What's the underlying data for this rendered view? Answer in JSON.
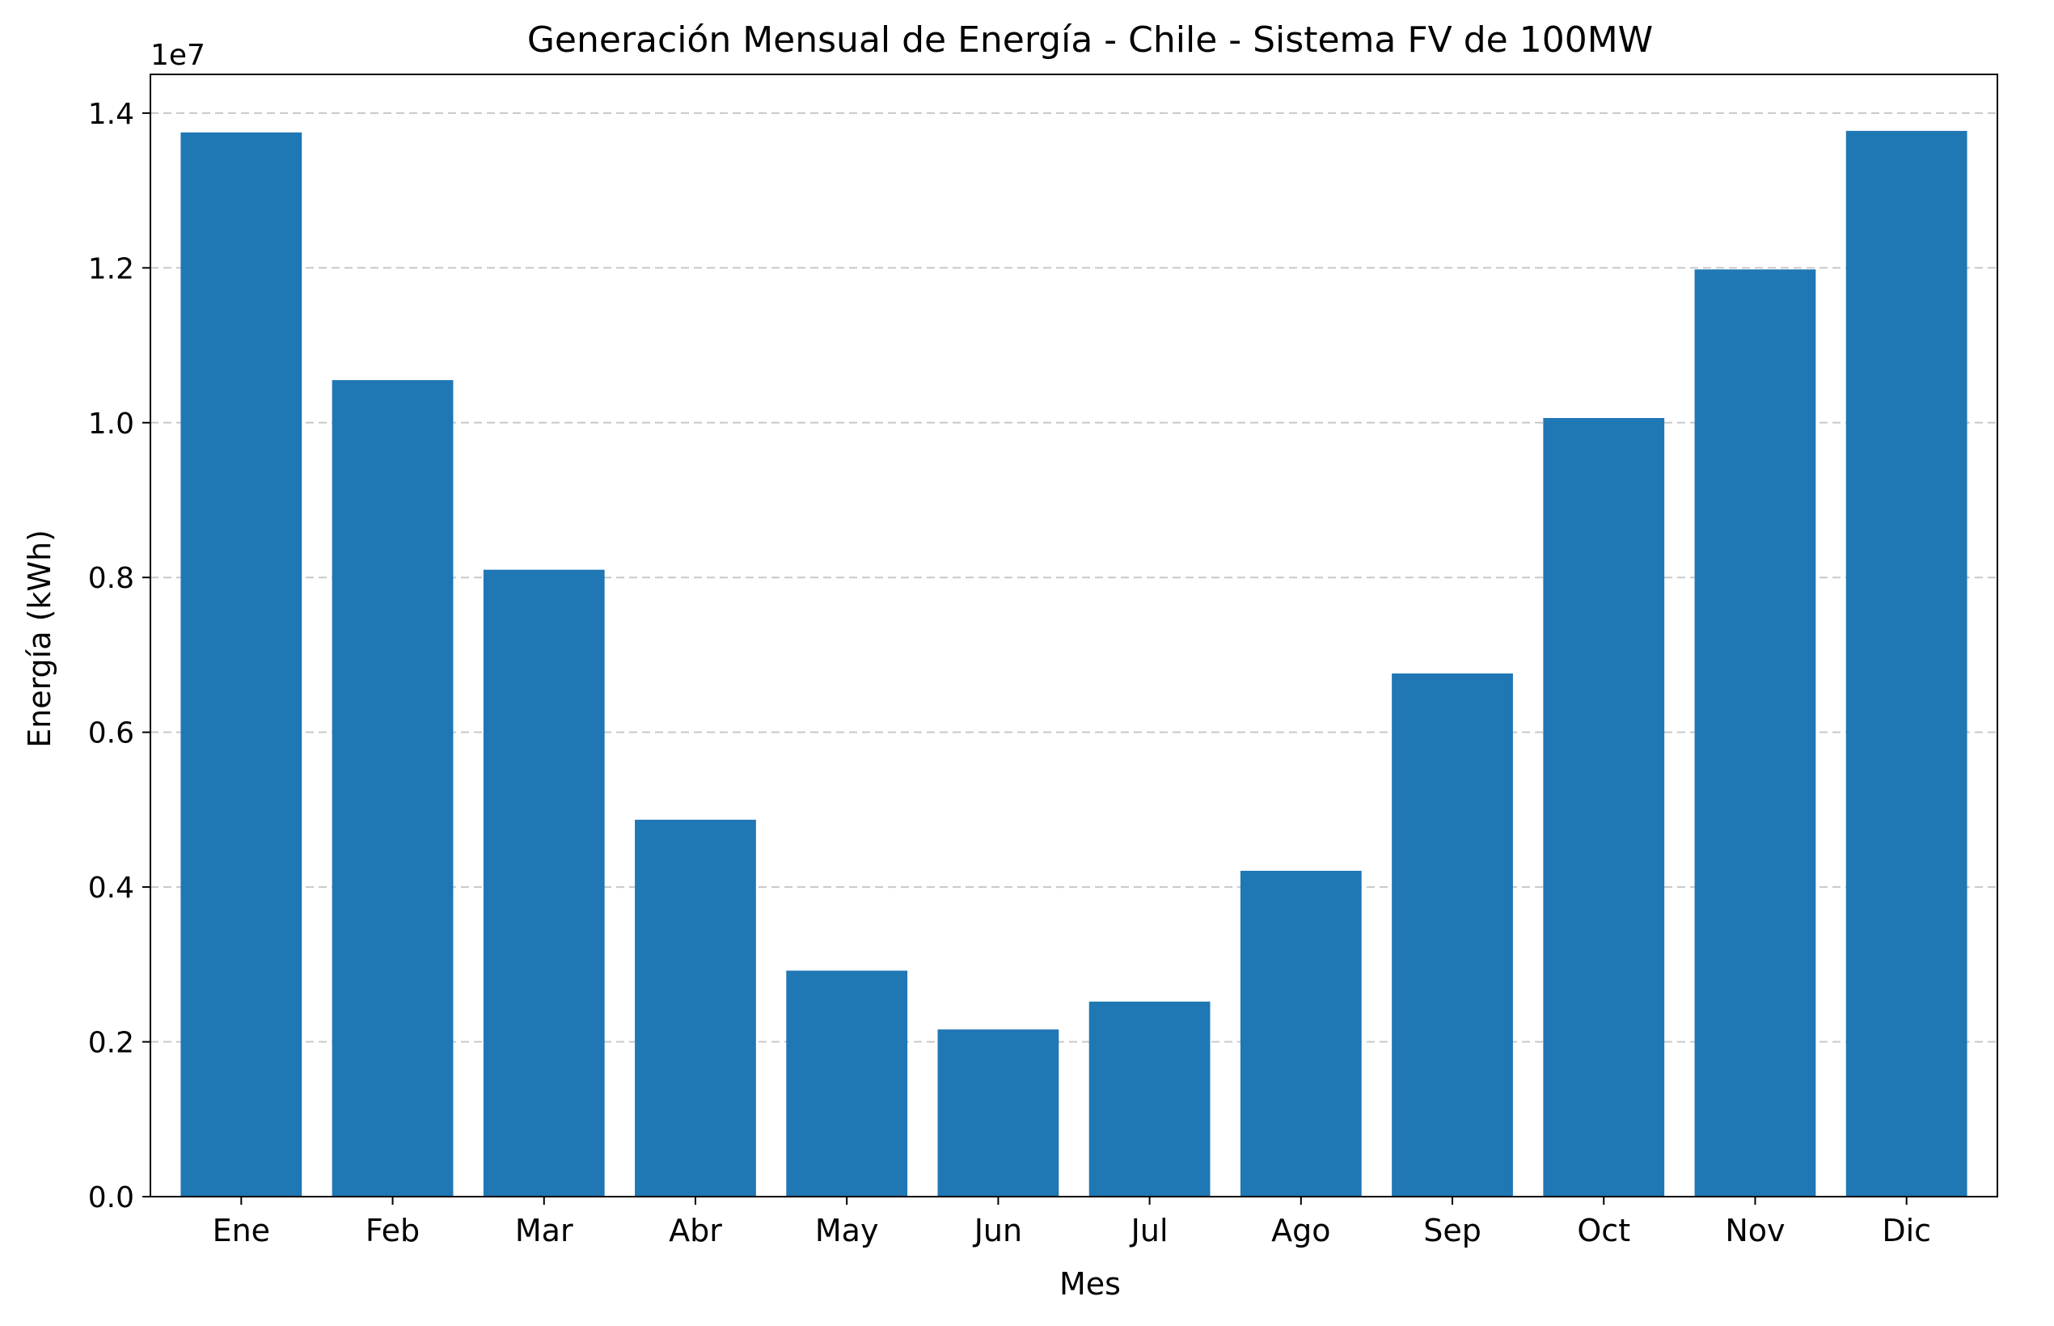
{
  "chart_data": {
    "type": "bar",
    "title": "Generación Mensual de Energía - Chile - Sistema FV de 100MW",
    "xlabel": "Mes",
    "ylabel": "Energía (kWh)",
    "y_offset_label": "1e7",
    "categories": [
      "Ene",
      "Feb",
      "Mar",
      "Abr",
      "May",
      "Jun",
      "Jul",
      "Ago",
      "Sep",
      "Oct",
      "Nov",
      "Dic"
    ],
    "values": [
      13750000,
      10550000,
      8100000,
      4870000,
      2920000,
      2160000,
      2520000,
      4210000,
      6760000,
      10060000,
      11980000,
      13770000
    ],
    "ylim": [
      0,
      14500000
    ],
    "yticks": [
      0,
      2000000,
      4000000,
      6000000,
      8000000,
      10000000,
      12000000,
      14000000
    ],
    "ytick_labels": [
      "0.0",
      "0.2",
      "0.4",
      "0.6",
      "0.8",
      "1.0",
      "1.2",
      "1.4"
    ],
    "grid": {
      "axis": "y",
      "style": "dashed",
      "color": "#c8c8c8"
    },
    "bar_color": "#1f77b4"
  }
}
